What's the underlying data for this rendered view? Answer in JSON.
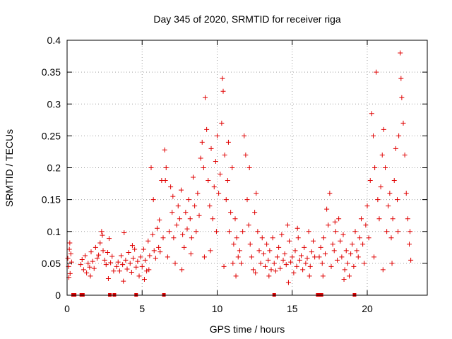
{
  "chart_data": {
    "type": "scatter",
    "title": "Day 345 of 2020, SRMTID for receiver riga",
    "xlabel": "GPS time / hours",
    "ylabel": "SRMTID / TECUs",
    "xlim": [
      0,
      24
    ],
    "ylim": [
      0,
      0.4
    ],
    "grid": true,
    "marker": "plus",
    "colors": {
      "series": "#e00000",
      "grid": "#a0a0a0",
      "axis": "#000000"
    },
    "x_ticks": [
      {
        "value": 0,
        "label": "0"
      },
      {
        "value": 5,
        "label": "5"
      },
      {
        "value": 10,
        "label": "10"
      },
      {
        "value": 15,
        "label": "15"
      },
      {
        "value": 20,
        "label": "20"
      }
    ],
    "y_ticks": [
      {
        "value": 0,
        "label": "0"
      },
      {
        "value": 0.05,
        "label": "0.05"
      },
      {
        "value": 0.1,
        "label": "0.1"
      },
      {
        "value": 0.15,
        "label": "0.15"
      },
      {
        "value": 0.2,
        "label": "0.2"
      },
      {
        "value": 0.25,
        "label": "0.25"
      },
      {
        "value": 0.3,
        "label": "0.3"
      },
      {
        "value": 0.35,
        "label": "0.35"
      },
      {
        "value": 0.4,
        "label": "0.4"
      }
    ],
    "series": [
      {
        "name": "SRMTID",
        "points": [
          [
            0.05,
            0.058
          ],
          [
            0.1,
            0.045
          ],
          [
            0.15,
            0.072
          ],
          [
            0.2,
            0.034
          ],
          [
            0.25,
            0.065
          ],
          [
            0.3,
            0.052
          ],
          [
            0.12,
            0.028
          ],
          [
            0.18,
            0.082
          ],
          [
            0.9,
            0.048
          ],
          [
            1.0,
            0.056
          ],
          [
            1.1,
            0.04
          ],
          [
            1.2,
            0.062
          ],
          [
            1.3,
            0.035
          ],
          [
            1.4,
            0.05
          ],
          [
            1.5,
            0.044
          ],
          [
            1.6,
            0.068
          ],
          [
            1.7,
            0.053
          ],
          [
            1.8,
            0.042
          ],
          [
            1.9,
            0.075
          ],
          [
            2.0,
            0.058
          ],
          [
            2.1,
            0.063
          ],
          [
            2.2,
            0.082
          ],
          [
            2.3,
            0.1
          ],
          [
            2.4,
            0.07
          ],
          [
            2.5,
            0.055
          ],
          [
            2.6,
            0.048
          ],
          [
            2.7,
            0.067
          ],
          [
            2.8,
            0.089
          ],
          [
            2.9,
            0.051
          ],
          [
            3.0,
            0.061
          ],
          [
            3.1,
            0.038
          ],
          [
            2.35,
            0.094
          ],
          [
            1.55,
            0.03
          ],
          [
            2.75,
            0.026
          ],
          [
            3.3,
            0.045
          ],
          [
            3.4,
            0.052
          ],
          [
            3.5,
            0.038
          ],
          [
            3.6,
            0.062
          ],
          [
            3.7,
            0.048
          ],
          [
            3.8,
            0.098
          ],
          [
            3.9,
            0.055
          ],
          [
            4.0,
            0.041
          ],
          [
            4.1,
            0.067
          ],
          [
            4.2,
            0.05
          ],
          [
            4.3,
            0.036
          ],
          [
            4.4,
            0.058
          ],
          [
            4.5,
            0.072
          ],
          [
            4.6,
            0.044
          ],
          [
            4.7,
            0.053
          ],
          [
            4.8,
            0.03
          ],
          [
            3.75,
            0.022
          ],
          [
            4.35,
            0.078
          ],
          [
            4.9,
            0.06
          ],
          [
            5.0,
            0.045
          ],
          [
            5.1,
            0.072
          ],
          [
            5.2,
            0.055
          ],
          [
            5.3,
            0.038
          ],
          [
            5.4,
            0.085
          ],
          [
            5.5,
            0.062
          ],
          [
            5.6,
            0.2
          ],
          [
            5.7,
            0.095
          ],
          [
            5.8,
            0.07
          ],
          [
            5.9,
            0.058
          ],
          [
            6.0,
            0.105
          ],
          [
            6.1,
            0.075
          ],
          [
            6.2,
            0.068
          ],
          [
            6.3,
            0.18
          ],
          [
            6.4,
            0.09
          ],
          [
            5.15,
            0.025
          ],
          [
            5.45,
            0.04
          ],
          [
            5.75,
            0.15
          ],
          [
            6.15,
            0.118
          ],
          [
            6.5,
            0.228
          ],
          [
            6.6,
            0.2
          ],
          [
            6.7,
            0.06
          ],
          [
            6.8,
            0.1
          ],
          [
            6.9,
            0.17
          ],
          [
            7.0,
            0.13
          ],
          [
            7.1,
            0.09
          ],
          [
            7.2,
            0.05
          ],
          [
            7.3,
            0.11
          ],
          [
            7.4,
            0.14
          ],
          [
            7.5,
            0.12
          ],
          [
            7.6,
            0.165
          ],
          [
            7.7,
            0.095
          ],
          [
            7.8,
            0.075
          ],
          [
            7.9,
            0.13
          ],
          [
            8.0,
            0.104
          ],
          [
            8.1,
            0.15
          ],
          [
            8.2,
            0.12
          ],
          [
            8.3,
            0.09
          ],
          [
            8.4,
            0.185
          ],
          [
            8.5,
            0.14
          ],
          [
            8.6,
            0.1
          ],
          [
            8.7,
            0.16
          ],
          [
            8.8,
            0.125
          ],
          [
            6.55,
            0.18
          ],
          [
            7.05,
            0.155
          ],
          [
            7.65,
            0.04
          ],
          [
            8.25,
            0.065
          ],
          [
            8.9,
            0.215
          ],
          [
            9.0,
            0.24
          ],
          [
            9.1,
            0.2
          ],
          [
            9.2,
            0.31
          ],
          [
            9.3,
            0.26
          ],
          [
            9.4,
            0.18
          ],
          [
            9.5,
            0.14
          ],
          [
            9.6,
            0.23
          ],
          [
            9.7,
            0.12
          ],
          [
            9.8,
            0.17
          ],
          [
            9.9,
            0.21
          ],
          [
            10.0,
            0.25
          ],
          [
            10.1,
            0.16
          ],
          [
            10.2,
            0.19
          ],
          [
            10.3,
            0.27
          ],
          [
            10.35,
            0.34
          ],
          [
            10.4,
            0.32
          ],
          [
            10.5,
            0.22
          ],
          [
            10.6,
            0.15
          ],
          [
            10.7,
            0.18
          ],
          [
            10.8,
            0.1
          ],
          [
            10.9,
            0.13
          ],
          [
            11.0,
            0.2
          ],
          [
            11.1,
            0.08
          ],
          [
            9.15,
            0.06
          ],
          [
            9.55,
            0.07
          ],
          [
            9.95,
            0.1
          ],
          [
            10.45,
            0.045
          ],
          [
            10.75,
            0.24
          ],
          [
            11.05,
            0.05
          ],
          [
            11.2,
            0.12
          ],
          [
            11.3,
            0.09
          ],
          [
            11.4,
            0.06
          ],
          [
            11.5,
            0.07
          ],
          [
            11.6,
            0.05
          ],
          [
            11.7,
            0.1
          ],
          [
            11.8,
            0.25
          ],
          [
            11.9,
            0.22
          ],
          [
            12.0,
            0.15
          ],
          [
            12.1,
            0.11
          ],
          [
            12.2,
            0.08
          ],
          [
            12.3,
            0.06
          ],
          [
            12.4,
            0.04
          ],
          [
            12.5,
            0.13
          ],
          [
            12.6,
            0.16
          ],
          [
            12.7,
            0.1
          ],
          [
            12.8,
            0.07
          ],
          [
            12.9,
            0.05
          ],
          [
            13.0,
            0.09
          ],
          [
            11.25,
            0.03
          ],
          [
            12.15,
            0.2
          ],
          [
            12.55,
            0.035
          ],
          [
            13.1,
            0.065
          ],
          [
            13.2,
            0.045
          ],
          [
            13.3,
            0.08
          ],
          [
            13.4,
            0.055
          ],
          [
            13.5,
            0.07
          ],
          [
            13.6,
            0.04
          ],
          [
            13.7,
            0.09
          ],
          [
            13.8,
            0.05
          ],
          [
            13.9,
            0.038
          ],
          [
            14.0,
            0.06
          ],
          [
            14.1,
            0.075
          ],
          [
            14.2,
            0.042
          ],
          [
            14.3,
            0.095
          ],
          [
            14.4,
            0.055
          ],
          [
            14.5,
            0.065
          ],
          [
            14.6,
            0.048
          ],
          [
            14.7,
            0.11
          ],
          [
            14.8,
            0.085
          ],
          [
            14.9,
            0.052
          ],
          [
            15.0,
            0.06
          ],
          [
            15.1,
            0.035
          ],
          [
            15.2,
            0.07
          ],
          [
            15.3,
            0.045
          ],
          [
            15.4,
            0.09
          ],
          [
            15.5,
            0.055
          ],
          [
            15.6,
            0.062
          ],
          [
            15.7,
            0.04
          ],
          [
            15.8,
            0.075
          ],
          [
            15.9,
            0.05
          ],
          [
            16.0,
            0.058
          ],
          [
            16.1,
            0.1
          ],
          [
            16.2,
            0.045
          ],
          [
            16.3,
            0.068
          ],
          [
            16.4,
            0.085
          ],
          [
            16.5,
            0.06
          ],
          [
            13.45,
            0.03
          ],
          [
            14.75,
            0.02
          ],
          [
            15.35,
            0.105
          ],
          [
            16.15,
            0.03
          ],
          [
            16.8,
            0.06
          ],
          [
            16.9,
            0.075
          ],
          [
            17.0,
            0.05
          ],
          [
            17.1,
            0.09
          ],
          [
            17.2,
            0.065
          ],
          [
            17.3,
            0.135
          ],
          [
            17.4,
            0.11
          ],
          [
            17.5,
            0.16
          ],
          [
            17.6,
            0.045
          ],
          [
            17.7,
            0.08
          ],
          [
            17.8,
            0.07
          ],
          [
            17.9,
            0.1
          ],
          [
            18.0,
            0.055
          ],
          [
            18.1,
            0.12
          ],
          [
            18.2,
            0.085
          ],
          [
            18.3,
            0.06
          ],
          [
            18.4,
            0.095
          ],
          [
            18.5,
            0.04
          ],
          [
            18.6,
            0.07
          ],
          [
            18.7,
            0.05
          ],
          [
            18.8,
            0.03
          ],
          [
            18.9,
            0.065
          ],
          [
            19.0,
            0.08
          ],
          [
            19.1,
            0.045
          ],
          [
            17.05,
            0.03
          ],
          [
            17.85,
            0.115
          ],
          [
            18.45,
            0.025
          ],
          [
            19.2,
            0.1
          ],
          [
            19.3,
            0.07
          ],
          [
            19.4,
            0.06
          ],
          [
            19.5,
            0.09
          ],
          [
            19.6,
            0.12
          ],
          [
            19.7,
            0.08
          ],
          [
            19.8,
            0.05
          ],
          [
            19.9,
            0.11
          ],
          [
            20.0,
            0.14
          ],
          [
            20.1,
            0.09
          ],
          [
            20.2,
            0.18
          ],
          [
            20.3,
            0.285
          ],
          [
            20.4,
            0.25
          ],
          [
            20.5,
            0.2
          ],
          [
            20.6,
            0.35
          ],
          [
            20.7,
            0.15
          ],
          [
            20.8,
            0.12
          ],
          [
            20.9,
            0.17
          ],
          [
            21.0,
            0.22
          ],
          [
            21.1,
            0.26
          ],
          [
            21.2,
            0.2
          ],
          [
            21.3,
            0.1
          ],
          [
            21.4,
            0.14
          ],
          [
            21.5,
            0.16
          ],
          [
            21.6,
            0.09
          ],
          [
            21.7,
            0.12
          ],
          [
            21.8,
            0.18
          ],
          [
            21.9,
            0.23
          ],
          [
            22.0,
            0.15
          ],
          [
            22.1,
            0.25
          ],
          [
            22.2,
            0.38
          ],
          [
            22.25,
            0.34
          ],
          [
            22.3,
            0.31
          ],
          [
            22.4,
            0.27
          ],
          [
            22.5,
            0.22
          ],
          [
            22.6,
            0.16
          ],
          [
            22.7,
            0.12
          ],
          [
            22.8,
            0.08
          ],
          [
            22.9,
            0.055
          ],
          [
            20.45,
            0.06
          ],
          [
            21.05,
            0.04
          ],
          [
            21.65,
            0.05
          ],
          [
            22.05,
            0.1
          ],
          [
            22.85,
            0.1
          ]
        ]
      }
    ],
    "flag_markers_x": [
      0.4,
      0.5,
      0.95,
      1.05,
      2.85,
      3.15,
      4.6,
      6.45,
      13.8,
      16.7,
      16.85,
      16.95,
      19.15
    ]
  }
}
